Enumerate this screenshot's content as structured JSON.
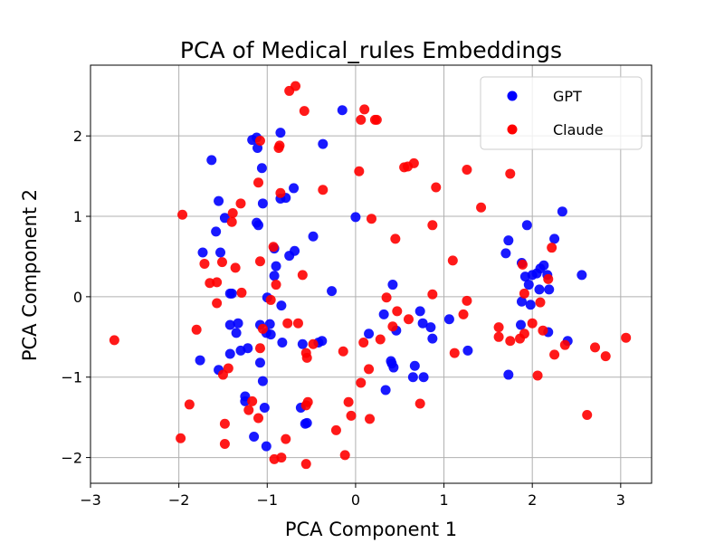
{
  "chart_data": {
    "type": "scatter",
    "title": "PCA of Medical_rules Embeddings",
    "xlabel": "PCA Component 1",
    "ylabel": "PCA Component 2",
    "xlim": [
      -3.0,
      3.35
    ],
    "ylim": [
      -2.32,
      2.88
    ],
    "xticks": [
      -3,
      -2,
      -1,
      0,
      1,
      2,
      3
    ],
    "yticks": [
      -2,
      -1,
      0,
      1,
      2
    ],
    "xtick_labels": [
      "−3",
      "−2",
      "−1",
      "0",
      "1",
      "2",
      "3"
    ],
    "ytick_labels": [
      "−2",
      "−1",
      "0",
      "1",
      "2"
    ],
    "grid": true,
    "legend_position": "top-right",
    "series": [
      {
        "name": "GPT",
        "color": "#0000ff",
        "points": [
          [
            -1.63,
            1.7
          ],
          [
            -1.55,
            1.19
          ],
          [
            -1.58,
            0.81
          ],
          [
            -1.48,
            0.98
          ],
          [
            -1.73,
            0.55
          ],
          [
            -1.53,
            0.55
          ],
          [
            -1.17,
            1.95
          ],
          [
            -1.12,
            1.98
          ],
          [
            -1.11,
            1.85
          ],
          [
            -1.06,
            1.6
          ],
          [
            -1.05,
            1.16
          ],
          [
            -1.12,
            0.92
          ],
          [
            -1.1,
            0.89
          ],
          [
            -0.92,
            0.6
          ],
          [
            -0.9,
            0.38
          ],
          [
            -0.92,
            0.26
          ],
          [
            -0.85,
            2.04
          ],
          [
            -0.85,
            1.22
          ],
          [
            -0.79,
            1.23
          ],
          [
            -0.7,
            1.35
          ],
          [
            -0.75,
            0.51
          ],
          [
            -0.69,
            0.57
          ],
          [
            -0.48,
            0.75
          ],
          [
            -0.37,
            1.9
          ],
          [
            -0.15,
            2.32
          ],
          [
            0.0,
            0.99
          ],
          [
            -0.27,
            0.07
          ],
          [
            -1.4,
            0.04
          ],
          [
            -1.42,
            0.04
          ],
          [
            -1.0,
            -0.01
          ],
          [
            -0.84,
            -0.11
          ],
          [
            -1.76,
            -0.79
          ],
          [
            -1.55,
            -0.91
          ],
          [
            -1.42,
            -0.71
          ],
          [
            -1.42,
            -0.35
          ],
          [
            -1.33,
            -0.33
          ],
          [
            -1.3,
            -0.67
          ],
          [
            -1.35,
            -0.45
          ],
          [
            -1.25,
            -1.24
          ],
          [
            -1.25,
            -1.3
          ],
          [
            -1.22,
            -0.64
          ],
          [
            -1.15,
            -1.74
          ],
          [
            -1.08,
            -0.35
          ],
          [
            -1.08,
            -0.82
          ],
          [
            -1.05,
            -1.05
          ],
          [
            -1.01,
            -0.45
          ],
          [
            -0.97,
            -0.34
          ],
          [
            -0.96,
            -0.47
          ],
          [
            -1.03,
            -1.38
          ],
          [
            -1.01,
            -1.86
          ],
          [
            -0.83,
            -0.57
          ],
          [
            -0.6,
            -0.59
          ],
          [
            -0.62,
            -1.38
          ],
          [
            -0.55,
            -1.57
          ],
          [
            -0.57,
            -1.58
          ],
          [
            -0.38,
            -0.55
          ],
          [
            -0.42,
            -0.57
          ],
          [
            0.15,
            -0.46
          ],
          [
            0.32,
            -0.22
          ],
          [
            0.34,
            -1.16
          ],
          [
            0.4,
            -0.8
          ],
          [
            0.43,
            -0.88
          ],
          [
            0.41,
            -0.83
          ],
          [
            0.46,
            -0.42
          ],
          [
            0.42,
            0.15
          ],
          [
            0.65,
            -1.0
          ],
          [
            0.67,
            -0.86
          ],
          [
            0.73,
            -0.18
          ],
          [
            0.77,
            -1.0
          ],
          [
            0.76,
            -0.33
          ],
          [
            0.85,
            -0.38
          ],
          [
            0.87,
            -0.52
          ],
          [
            1.06,
            -0.28
          ],
          [
            1.27,
            -0.67
          ],
          [
            1.7,
            0.54
          ],
          [
            1.73,
            0.7
          ],
          [
            1.73,
            -0.97
          ],
          [
            1.88,
            0.42
          ],
          [
            1.88,
            -0.06
          ],
          [
            1.87,
            -0.35
          ],
          [
            1.92,
            0.25
          ],
          [
            1.94,
            0.89
          ],
          [
            1.96,
            0.15
          ],
          [
            1.98,
            -0.1
          ],
          [
            2.0,
            0.27
          ],
          [
            2.05,
            0.29
          ],
          [
            2.08,
            0.09
          ],
          [
            2.09,
            0.35
          ],
          [
            2.13,
            0.39
          ],
          [
            2.17,
            0.27
          ],
          [
            2.19,
            0.09
          ],
          [
            2.18,
            -0.44
          ],
          [
            2.25,
            0.72
          ],
          [
            2.34,
            1.06
          ],
          [
            2.4,
            -0.55
          ],
          [
            2.56,
            0.27
          ]
        ]
      },
      {
        "name": "Claude",
        "color": "#ff0000",
        "points": [
          [
            -2.73,
            -0.54
          ],
          [
            -1.96,
            1.02
          ],
          [
            -1.98,
            -1.76
          ],
          [
            -1.88,
            -1.34
          ],
          [
            -1.8,
            -0.41
          ],
          [
            -1.71,
            0.41
          ],
          [
            -1.65,
            0.17
          ],
          [
            -1.57,
            0.18
          ],
          [
            -1.57,
            -0.08
          ],
          [
            -1.51,
            0.43
          ],
          [
            -1.5,
            -0.97
          ],
          [
            -1.48,
            -1.58
          ],
          [
            -1.48,
            -1.83
          ],
          [
            -1.44,
            -0.89
          ],
          [
            -1.39,
            1.04
          ],
          [
            -1.4,
            0.93
          ],
          [
            -1.36,
            0.36
          ],
          [
            -1.3,
            1.16
          ],
          [
            -1.29,
            0.05
          ],
          [
            -1.21,
            -1.41
          ],
          [
            -1.17,
            -1.3
          ],
          [
            -1.1,
            1.42
          ],
          [
            -1.1,
            -1.51
          ],
          [
            -1.08,
            1.94
          ],
          [
            -1.08,
            0.44
          ],
          [
            -1.08,
            -0.64
          ],
          [
            -1.05,
            -0.4
          ],
          [
            -0.96,
            -0.04
          ],
          [
            -0.93,
            0.62
          ],
          [
            -0.9,
            0.15
          ],
          [
            -0.92,
            -2.02
          ],
          [
            -0.86,
            1.88
          ],
          [
            -0.85,
            1.29
          ],
          [
            -0.87,
            1.85
          ],
          [
            -0.84,
            -2.0
          ],
          [
            -0.79,
            -1.77
          ],
          [
            -0.77,
            -0.33
          ],
          [
            -0.75,
            2.56
          ],
          [
            -0.68,
            2.62
          ],
          [
            -0.65,
            -0.33
          ],
          [
            -0.6,
            0.27
          ],
          [
            -0.58,
            2.31
          ],
          [
            -0.56,
            -0.7
          ],
          [
            -0.55,
            -0.76
          ],
          [
            -0.56,
            -1.35
          ],
          [
            -0.54,
            -1.31
          ],
          [
            -0.56,
            -2.08
          ],
          [
            -0.48,
            -0.59
          ],
          [
            -0.37,
            1.33
          ],
          [
            -0.22,
            -1.66
          ],
          [
            -0.14,
            -0.68
          ],
          [
            -0.12,
            -1.97
          ],
          [
            -0.08,
            -1.31
          ],
          [
            -0.05,
            -1.48
          ],
          [
            0.04,
            1.56
          ],
          [
            0.06,
            2.2
          ],
          [
            0.1,
            2.33
          ],
          [
            0.06,
            -1.07
          ],
          [
            0.09,
            -0.57
          ],
          [
            0.16,
            -1.52
          ],
          [
            0.15,
            -0.9
          ],
          [
            0.18,
            0.97
          ],
          [
            0.22,
            2.2
          ],
          [
            0.24,
            2.2
          ],
          [
            0.28,
            -0.53
          ],
          [
            0.35,
            -0.01
          ],
          [
            0.42,
            -0.37
          ],
          [
            0.45,
            0.72
          ],
          [
            0.47,
            -0.18
          ],
          [
            0.55,
            1.61
          ],
          [
            0.59,
            1.62
          ],
          [
            0.6,
            -0.28
          ],
          [
            0.66,
            1.66
          ],
          [
            0.73,
            -1.33
          ],
          [
            0.87,
            0.89
          ],
          [
            0.87,
            0.03
          ],
          [
            0.91,
            1.36
          ],
          [
            1.1,
            0.45
          ],
          [
            1.12,
            -0.7
          ],
          [
            1.22,
            -0.22
          ],
          [
            1.26,
            1.58
          ],
          [
            1.26,
            -0.05
          ],
          [
            1.42,
            1.11
          ],
          [
            1.62,
            -0.38
          ],
          [
            1.62,
            -0.5
          ],
          [
            1.75,
            1.53
          ],
          [
            1.75,
            -0.55
          ],
          [
            1.86,
            -0.52
          ],
          [
            1.89,
            0.4
          ],
          [
            1.91,
            0.04
          ],
          [
            1.91,
            -0.46
          ],
          [
            2.0,
            -0.33
          ],
          [
            2.06,
            -0.98
          ],
          [
            2.09,
            -0.07
          ],
          [
            2.12,
            -0.42
          ],
          [
            2.18,
            0.22
          ],
          [
            2.22,
            0.61
          ],
          [
            2.25,
            -0.72
          ],
          [
            2.37,
            -0.6
          ],
          [
            2.62,
            -1.47
          ],
          [
            2.71,
            -0.63
          ],
          [
            2.83,
            -0.74
          ],
          [
            3.06,
            -0.51
          ]
        ]
      }
    ]
  }
}
